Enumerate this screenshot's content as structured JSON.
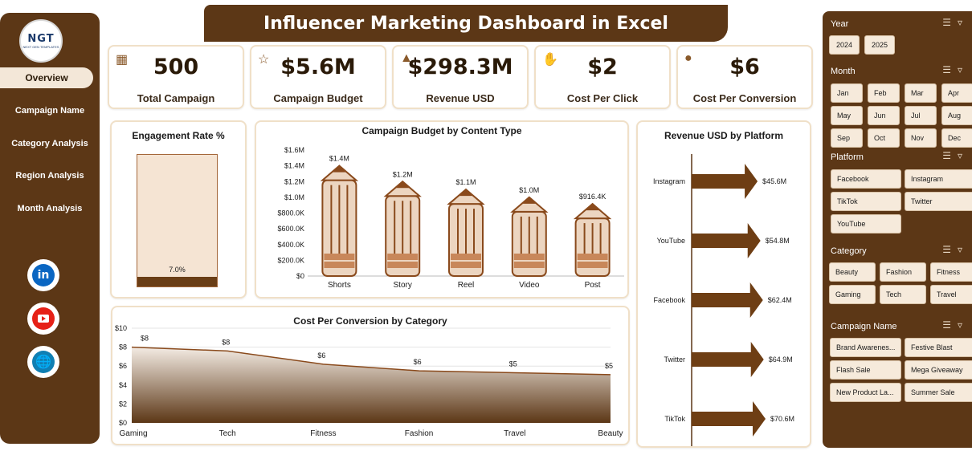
{
  "header": {
    "title": "Influencer Marketing Dashboard in Excel"
  },
  "logo": {
    "text": "NGT",
    "subtext": "NEXT GEN TEMPLATES"
  },
  "nav": [
    {
      "label": "Overview",
      "active": true
    },
    {
      "label": "Campaign Name"
    },
    {
      "label": "Category Analysis"
    },
    {
      "label": "Region Analysis"
    },
    {
      "label": "Month Analysis"
    }
  ],
  "social": {
    "linkedin": "in",
    "youtube": "youtube-icon",
    "web": "globe-icon"
  },
  "kpis": [
    {
      "value": "500",
      "label": "Total Campaign",
      "icon": "campaign-icon"
    },
    {
      "value": "$5.6M",
      "label": "Campaign Budget",
      "icon": "budget-icon"
    },
    {
      "value": "$298.3M",
      "label": "Revenue USD",
      "icon": "revenue-icon"
    },
    {
      "value": "$2",
      "label": "Cost Per Click",
      "icon": "click-icon"
    },
    {
      "value": "$6",
      "label": "Cost Per Conversion",
      "icon": "conversion-icon"
    }
  ],
  "charts": {
    "engagement": {
      "title": "Engagement Rate %",
      "label": "7.0%",
      "value": 0.07
    },
    "budget": {
      "title": "Campaign Budget by Content Type",
      "yticks": [
        "$1.6M",
        "$1.4M",
        "$1.2M",
        "$1.0M",
        "$800.0K",
        "$600.0K",
        "$400.0K",
        "$200.0K",
        "$0"
      ]
    },
    "cpc": {
      "title": "Cost Per Conversion by Category",
      "yticks": [
        "$10",
        "$8",
        "$6",
        "$4",
        "$2",
        "$0"
      ]
    },
    "revenue": {
      "title": "Revenue USD by Platform"
    }
  },
  "chart_data": [
    {
      "type": "bar",
      "title": "Campaign Budget by Content Type",
      "categories": [
        "Shorts",
        "Story",
        "Reel",
        "Video",
        "Post"
      ],
      "values": [
        1400000,
        1200000,
        1100000,
        1000000,
        916400
      ],
      "data_labels": [
        "$1.4M",
        "$1.2M",
        "$1.1M",
        "$1.0M",
        "$916.4K"
      ],
      "ylim": [
        0,
        1600000
      ]
    },
    {
      "type": "area",
      "title": "Cost Per Conversion by Category",
      "categories": [
        "Gaming",
        "Tech",
        "Fitness",
        "Fashion",
        "Travel",
        "Beauty"
      ],
      "values": [
        8,
        7.6,
        6.2,
        5.5,
        5.3,
        5.1
      ],
      "data_labels": [
        "$8",
        "$8",
        "$6",
        "$6",
        "$5",
        "$5"
      ],
      "ylim": [
        0,
        10
      ]
    },
    {
      "type": "bar",
      "title": "Revenue USD by Platform",
      "categories": [
        "Instagram",
        "YouTube",
        "Facebook",
        "Twitter",
        "TikTok"
      ],
      "values": [
        45.6,
        54.8,
        62.4,
        64.9,
        70.6
      ],
      "data_labels": [
        "$45.6M",
        "$54.8M",
        "$62.4M",
        "$64.9M",
        "$70.6M"
      ]
    },
    {
      "type": "bar",
      "title": "Engagement Rate %",
      "categories": [
        ""
      ],
      "values": [
        7.0
      ],
      "data_labels": [
        "7.0%"
      ],
      "ylim": [
        0,
        100
      ]
    }
  ],
  "slicers": {
    "year": {
      "title": "Year",
      "items": [
        "2024",
        "2025"
      ]
    },
    "month": {
      "title": "Month",
      "items": [
        "Jan",
        "Feb",
        "Mar",
        "Apr",
        "May",
        "Jun",
        "Jul",
        "Aug",
        "Sep",
        "Oct",
        "Nov",
        "Dec"
      ]
    },
    "platform": {
      "title": "Platform",
      "items": [
        "Facebook",
        "Instagram",
        "TikTok",
        "Twitter",
        "YouTube"
      ]
    },
    "category": {
      "title": "Category",
      "items": [
        "Beauty",
        "Fashion",
        "Fitness",
        "Gaming",
        "Tech",
        "Travel"
      ]
    },
    "campaign": {
      "title": "Campaign Name",
      "items": [
        "Brand Awarenes...",
        "Festive Blast",
        "Flash Sale",
        "Mega Giveaway",
        "New Product La...",
        "Summer Sale"
      ]
    }
  },
  "colors": {
    "brown": "#5c3716",
    "cream": "#f3e7d8",
    "accent": "#c8875a"
  }
}
